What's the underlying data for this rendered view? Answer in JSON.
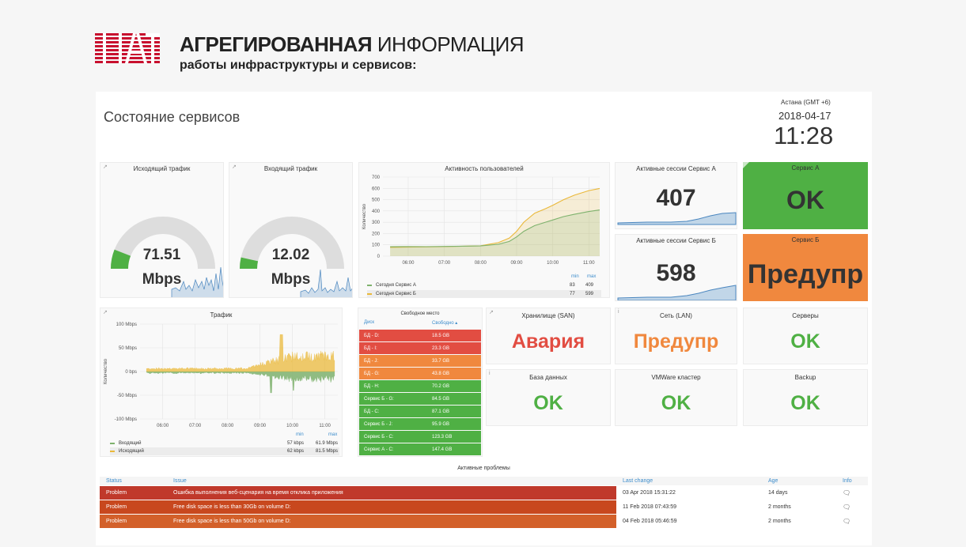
{
  "brand": {
    "title_bold": "АГРЕГИРОВАННАЯ",
    "title_light": "ИНФОРМАЦИЯ",
    "subtitle": "работы инфраструктуры и сервисов:",
    "logo_text": "NAT"
  },
  "dashboard": {
    "title": "Состояние сервисов",
    "clock": {
      "tz": "Астана (GMT +6)",
      "date": "2018-04-17",
      "time": "11:28"
    }
  },
  "gauges": [
    {
      "title": "Исходящий трафик",
      "value": "71.51",
      "unit": "Mbps",
      "fraction": 0.12
    },
    {
      "title": "Входящий трафик",
      "value": "12.02",
      "unit": "Mbps",
      "fraction": 0.07
    }
  ],
  "activity": {
    "title": "Активность пользователей",
    "ylabel": "Количество",
    "legend": {
      "min_label": "min",
      "max_label": "max",
      "rows": [
        {
          "name": "Сегодня Сервис А",
          "min": "83",
          "max": "409",
          "color": "#7eb26d"
        },
        {
          "name": "Сегодня Сервис Б",
          "min": "77",
          "max": "599",
          "color": "#eab839"
        }
      ]
    }
  },
  "sessions": [
    {
      "title": "Активные сессии Сервис А",
      "value": "407"
    },
    {
      "title": "Активные сессии Сервис Б",
      "value": "598"
    }
  ],
  "service_status": [
    {
      "title": "Сервис А",
      "value": "OK",
      "bg": "#4fb044"
    },
    {
      "title": "Сервис Б",
      "value": "Предупр",
      "bg": "#f0883e"
    }
  ],
  "traffic": {
    "title": "Трафик",
    "ylabel": "Количество",
    "legend": {
      "min_label": "min",
      "max_label": "max",
      "rows": [
        {
          "name": "Входящий",
          "min": "57 kbps",
          "max": "61.9 Mbps",
          "color": "#7eb26d"
        },
        {
          "name": "Исходящий",
          "min": "62 kbps",
          "max": "81.5 Mbps",
          "color": "#eab839"
        }
      ]
    }
  },
  "free_space": {
    "title": "Свободное место",
    "col_disk": "Диск",
    "col_free": "Свободно ▴",
    "rows": [
      {
        "disk": "БД - D:",
        "free": "18.5 GB",
        "color": "#e24d42"
      },
      {
        "disk": "БД - I:",
        "free": "23.3 GB",
        "color": "#e24d42"
      },
      {
        "disk": "БД - J:",
        "free": "33.7 GB",
        "color": "#f0883e"
      },
      {
        "disk": "БД - G:",
        "free": "43.8 GB",
        "color": "#f0883e"
      },
      {
        "disk": "БД - H:",
        "free": "70.2 GB",
        "color": "#4fb044"
      },
      {
        "disk": "Сервис Б - G:",
        "free": "84.5 GB",
        "color": "#4fb044"
      },
      {
        "disk": "БД - C:",
        "free": "87.1 GB",
        "color": "#4fb044"
      },
      {
        "disk": "Сервис Б - J:",
        "free": "95.9 GB",
        "color": "#4fb044"
      },
      {
        "disk": "Сервис Б - C:",
        "free": "123.3 GB",
        "color": "#4fb044"
      },
      {
        "disk": "Сервис А - C:",
        "free": "147.4 GB",
        "color": "#4fb044"
      }
    ]
  },
  "statuses": [
    {
      "title": "Хранилище (SAN)",
      "value": "Авария",
      "color": "#e24d42"
    },
    {
      "title": "Сеть (LAN)",
      "value": "Предупр",
      "color": "#f0883e"
    },
    {
      "title": "Серверы",
      "value": "OK",
      "color": "#4fb044"
    },
    {
      "title": "База данных",
      "value": "OK",
      "color": "#4fb044"
    },
    {
      "title": "VMWare кластер",
      "value": "OK",
      "color": "#4fb044"
    },
    {
      "title": "Backup",
      "value": "OK",
      "color": "#4fb044"
    }
  ],
  "problems": {
    "title": "Активные проблемы",
    "headers": {
      "status": "Status",
      "issue": "Issue",
      "last": "Last change",
      "age": "Age",
      "info": "Info"
    },
    "rows": [
      {
        "status": "Problem",
        "issue": "Ошибка выполнения веб-сценария на время отклика приложения",
        "last": "03 Apr 2018 15:31:22",
        "age": "14 days",
        "color": "#c0392b"
      },
      {
        "status": "Problem",
        "issue": "Free disk space is less than 30Gb on volume D:",
        "last": "11 Feb 2018 07:43:59",
        "age": "2 months",
        "color": "#c8481e"
      },
      {
        "status": "Problem",
        "issue": "Free disk space is less than 50Gb on volume D:",
        "last": "04 Feb 2018 05:46:59",
        "age": "2 months",
        "color": "#d3602a"
      }
    ]
  },
  "chart_data": [
    {
      "type": "line",
      "title": "Активность пользователей",
      "ylabel": "Количество",
      "xlabels": [
        "06:00",
        "07:00",
        "08:00",
        "09:00",
        "10:00",
        "11:00"
      ],
      "ylim": [
        0,
        700
      ],
      "yticks": [
        "0",
        "100",
        "200",
        "300",
        "400",
        "500",
        "600",
        "700"
      ],
      "x": [
        5.5,
        6,
        6.5,
        7,
        7.5,
        8,
        8.5,
        8.8,
        9,
        9.2,
        9.5,
        9.8,
        10,
        10.3,
        10.6,
        11,
        11.3
      ],
      "series": [
        {
          "name": "Сегодня Сервис А",
          "color": "#7eb26d",
          "values": [
            83,
            85,
            84,
            86,
            88,
            90,
            105,
            130,
            170,
            220,
            270,
            300,
            320,
            350,
            370,
            395,
            409
          ]
        },
        {
          "name": "Сегодня Сервис Б",
          "color": "#eab839",
          "values": [
            77,
            80,
            82,
            84,
            88,
            92,
            120,
            160,
            220,
            300,
            380,
            420,
            450,
            500,
            540,
            580,
            599
          ]
        }
      ]
    },
    {
      "type": "area",
      "title": "Трафик",
      "ylabel": "Количество",
      "xlabels": [
        "06:00",
        "07:00",
        "08:00",
        "09:00",
        "10:00",
        "11:00"
      ],
      "yticks": [
        "100 Mbps",
        "50 Mbps",
        "0 bps",
        "-50 Mbps",
        "-100 Mbps"
      ],
      "ylim": [
        -100,
        100
      ],
      "series": [
        {
          "name": "Входящий",
          "color": "#7eb26d",
          "min": "57 kbps",
          "max": "61.9 Mbps"
        },
        {
          "name": "Исходящий",
          "color": "#eab839",
          "min": "62 kbps",
          "max": "81.5 Mbps"
        }
      ]
    }
  ]
}
